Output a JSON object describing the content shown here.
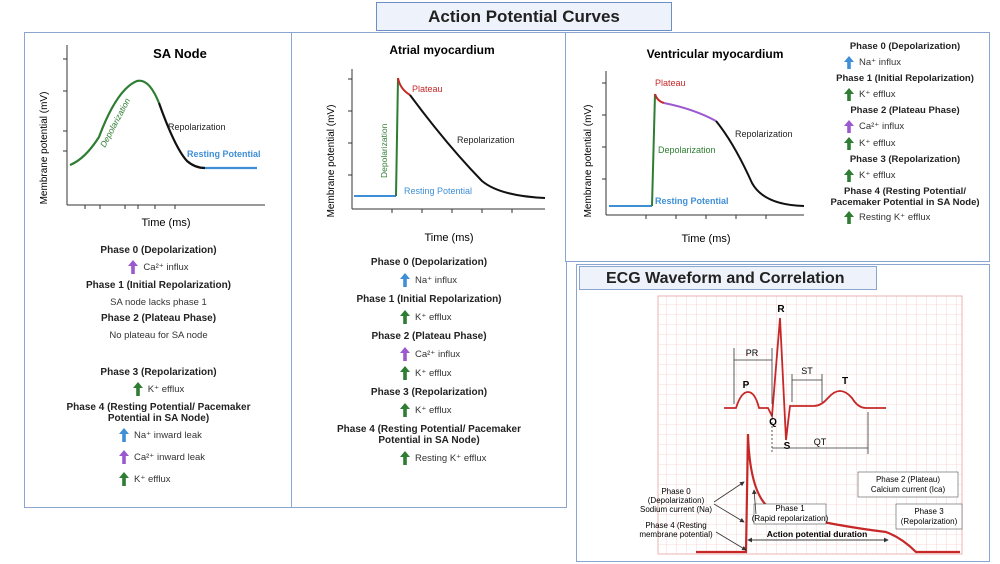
{
  "title": "Action Potential Curves",
  "common": {
    "y_label": "Membrane potential (mV)",
    "x_label": "Time (ms)"
  },
  "colors": {
    "green": "#2e7d32",
    "blue": "#3f8fd6",
    "red": "#c62828",
    "purple": "#9b59d0",
    "grid": "#f2b8b8",
    "ecg": "#c62828"
  },
  "sa": {
    "title": "SA Node",
    "labels": {
      "depol": "Depolarization",
      "repol": "Repolarization",
      "resting": "Resting Potential"
    },
    "phases": [
      {
        "heading": "Phase 0 (Depolarization)",
        "items": [
          {
            "arrow": "purple",
            "text": "Ca²⁺ influx"
          }
        ]
      },
      {
        "heading": "Phase 1 (Initial Repolarization)",
        "note": "SA node lacks phase 1"
      },
      {
        "heading": "Phase 2 (Plateau Phase)",
        "note": "No plateau for SA node"
      },
      {
        "heading": "Phase 3 (Repolarization)",
        "items": [
          {
            "arrow": "green",
            "text": "K⁺ efflux"
          }
        ]
      },
      {
        "heading": "Phase 4 (Resting Potential/ Pacemaker Potential in SA Node)",
        "items": [
          {
            "arrow": "blue",
            "text": "Na⁺ inward leak"
          },
          {
            "arrow": "purple",
            "text": "Ca²⁺ inward leak"
          },
          {
            "arrow": "green",
            "text": "K⁺ efflux"
          }
        ]
      }
    ]
  },
  "atrial": {
    "title": "Atrial myocardium",
    "labels": {
      "depol": "Depolarization",
      "plateau": "Plateau",
      "repol": "Repolarization",
      "resting": "Resting Potential"
    },
    "phases": [
      {
        "heading": "Phase 0 (Depolarization)",
        "items": [
          {
            "arrow": "blue",
            "text": "Na⁺ influx"
          }
        ]
      },
      {
        "heading": "Phase 1 (Initial Repolarization)",
        "items": [
          {
            "arrow": "green",
            "text": "K⁺ efflux"
          }
        ]
      },
      {
        "heading": "Phase 2 (Plateau Phase)",
        "items": [
          {
            "arrow": "purple",
            "text": "Ca²⁺ influx"
          },
          {
            "arrow": "green",
            "text": "K⁺ efflux"
          }
        ]
      },
      {
        "heading": "Phase 3 (Repolarization)",
        "items": [
          {
            "arrow": "green",
            "text": "K⁺ efflux"
          }
        ]
      },
      {
        "heading": "Phase 4 (Resting Potential/ Pacemaker Potential in SA Node)",
        "items": [
          {
            "arrow": "green",
            "text": "Resting K⁺ efflux"
          }
        ]
      }
    ]
  },
  "ventricular": {
    "title": "Ventricular myocardium",
    "labels": {
      "plateau": "Plateau",
      "depol": "Depolarization",
      "repol": "Repolarization",
      "resting": "Resting Potential"
    },
    "phases": [
      {
        "heading": "Phase 0 (Depolarization)",
        "items": [
          {
            "arrow": "blue",
            "text": "Na⁺ influx"
          }
        ]
      },
      {
        "heading": "Phase 1 (Initial Repolarization)",
        "items": [
          {
            "arrow": "green",
            "text": "K⁺ efflux"
          }
        ]
      },
      {
        "heading": "Phase 2 (Plateau Phase)",
        "items": [
          {
            "arrow": "purple",
            "text": "Ca²⁺ influx"
          },
          {
            "arrow": "green",
            "text": "K⁺ efflux"
          }
        ]
      },
      {
        "heading": "Phase 3 (Repolarization)",
        "items": [
          {
            "arrow": "green",
            "text": "K⁺ efflux"
          }
        ]
      },
      {
        "heading": "Phase 4 (Resting Potential/ Pacemaker Potential in SA Node)",
        "items": [
          {
            "arrow": "green",
            "text": "Resting K⁺ efflux"
          }
        ]
      }
    ]
  },
  "ecg": {
    "title": "ECG Waveform and Correlation",
    "waves": {
      "p": "P",
      "q": "Q",
      "r": "R",
      "s": "S",
      "t": "T"
    },
    "intervals": {
      "pr": "PR",
      "st": "ST",
      "qt": "QT"
    },
    "phase0": {
      "line1": "Phase 0",
      "line2": "(Depolarization)",
      "line3": "Sodium current (Na)"
    },
    "phase4": {
      "line1": "Phase 4 (Resting",
      "line2": "membrane potential)"
    },
    "phase1": {
      "line1": "Phase 1",
      "line2": "(Rapid repolarization)"
    },
    "phase2": {
      "line1": "Phase 2 (Plateau)",
      "line2": "Calcium current (Ica)"
    },
    "phase3": {
      "line1": "Phase 3",
      "line2": "(Repolarization)"
    },
    "apd": "Action potential duration"
  }
}
